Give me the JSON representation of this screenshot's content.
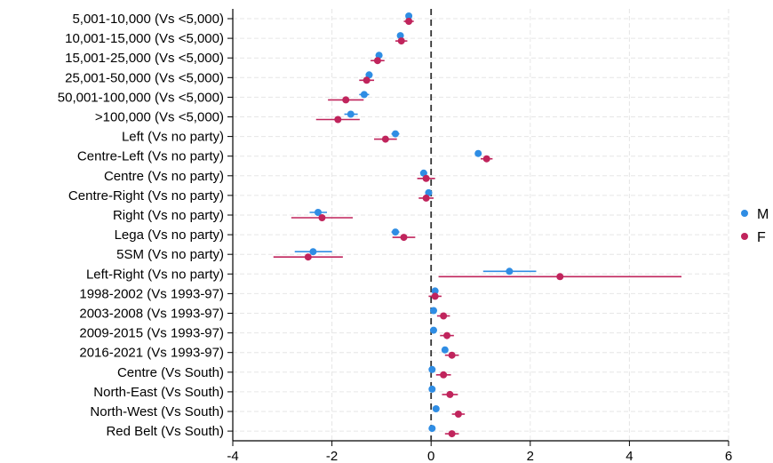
{
  "chart_data": {
    "type": "scatter",
    "title": "",
    "xlabel": "",
    "ylabel": "",
    "xlim": [
      -4,
      6
    ],
    "xticks": [
      -4,
      -2,
      0,
      2,
      4,
      6
    ],
    "grid": true,
    "legend_position": "right",
    "reference_line_x": 0,
    "categories": [
      "5,001-10,000 (Vs <5,000)",
      "10,001-15,000 (Vs <5,000)",
      "15,001-25,000 (Vs <5,000)",
      "25,001-50,000 (Vs <5,000)",
      "50,001-100,000 (Vs <5,000)",
      ">100,000 (Vs <5,000)",
      "Left (Vs no party)",
      "Centre-Left (Vs no party)",
      "Centre (Vs no party)",
      "Centre-Right (Vs no party)",
      "Right (Vs no party)",
      "Lega (Vs no party)",
      "5SM (Vs no party)",
      "Left-Right (Vs no party)",
      "1998-2002 (Vs 1993-97)",
      "2003-2008 (Vs 1993-97)",
      "2009-2015 (Vs 1993-97)",
      "2016-2021 (Vs 1993-97)",
      "Centre (Vs South)",
      "North-East (Vs South)",
      "North-West (Vs South)",
      "Red Belt (Vs South)"
    ],
    "series": [
      {
        "name": "M",
        "color": "#2f8de4",
        "estimates": [
          -0.45,
          -0.62,
          -1.05,
          -1.25,
          -1.35,
          -1.62,
          -0.72,
          0.95,
          -0.15,
          -0.05,
          -2.28,
          -0.72,
          -2.38,
          1.58,
          0.08,
          0.05,
          0.05,
          0.28,
          0.02,
          0.02,
          0.1,
          0.02
        ],
        "ci_low": [
          -0.5,
          -0.68,
          -1.12,
          -1.32,
          -1.45,
          -1.75,
          -0.8,
          0.9,
          -0.22,
          -0.12,
          -2.45,
          -0.8,
          -2.75,
          1.05,
          0.02,
          0.0,
          0.0,
          0.22,
          -0.03,
          -0.03,
          0.05,
          -0.03
        ],
        "ci_high": [
          -0.4,
          -0.55,
          -0.98,
          -1.18,
          -1.25,
          -1.48,
          -0.64,
          1.0,
          -0.08,
          0.02,
          -2.1,
          -0.64,
          -2.0,
          2.12,
          0.14,
          0.1,
          0.1,
          0.34,
          0.07,
          0.07,
          0.15,
          0.07
        ]
      },
      {
        "name": "F",
        "color": "#c0245c",
        "estimates": [
          -0.45,
          -0.6,
          -1.08,
          -1.3,
          -1.72,
          -1.88,
          -0.92,
          1.12,
          -0.1,
          -0.1,
          -2.2,
          -0.55,
          -2.48,
          2.6,
          0.08,
          0.25,
          0.32,
          0.42,
          0.25,
          0.38,
          0.55,
          0.42
        ],
        "ci_low": [
          -0.55,
          -0.72,
          -1.22,
          -1.45,
          -2.08,
          -2.32,
          -1.15,
          1.0,
          -0.28,
          -0.25,
          -2.82,
          -0.78,
          -3.18,
          0.15,
          -0.05,
          0.12,
          0.18,
          0.28,
          0.1,
          0.22,
          0.42,
          0.28
        ],
        "ci_high": [
          -0.35,
          -0.48,
          -0.94,
          -1.15,
          -1.36,
          -1.44,
          -0.69,
          1.24,
          0.08,
          0.05,
          -1.58,
          -0.32,
          -1.78,
          5.05,
          0.21,
          0.38,
          0.46,
          0.56,
          0.4,
          0.54,
          0.68,
          0.56
        ]
      }
    ]
  }
}
